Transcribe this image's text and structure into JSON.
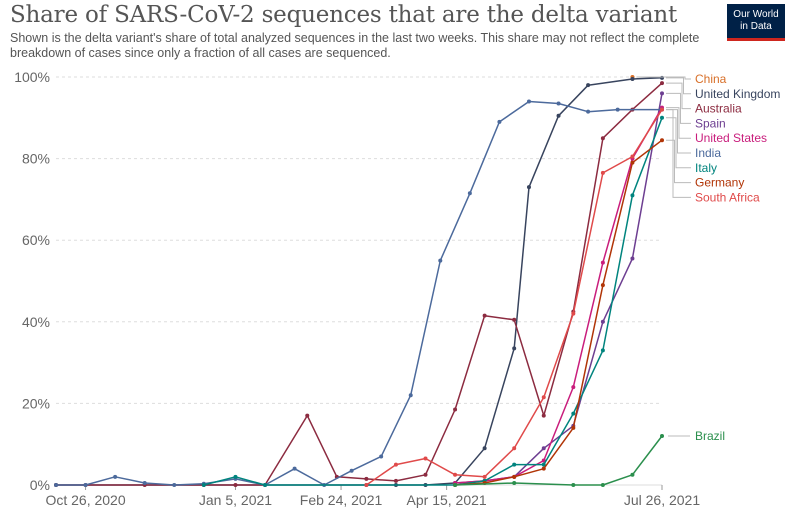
{
  "header": {
    "title": "Share of SARS-CoV-2 sequences that are the delta variant",
    "subtitle": "Shown is the delta variant's share of total analyzed sequences in the last two weeks. This share may not reflect the complete breakdown of cases since only a fraction of all cases are sequenced.",
    "logo_line1": "Our World",
    "logo_line2": "in Data"
  },
  "chart_data": {
    "type": "line",
    "title": "Share of SARS-CoV-2 sequences that are the delta variant",
    "xlabel": "",
    "ylabel": "",
    "ylim": [
      0,
      100
    ],
    "grid": true,
    "legend": "right",
    "y_ticks": [
      {
        "value": 0,
        "label": "0%"
      },
      {
        "value": 20,
        "label": "20%"
      },
      {
        "value": 40,
        "label": "40%"
      },
      {
        "value": 60,
        "label": "60%"
      },
      {
        "value": 80,
        "label": "80%"
      },
      {
        "value": 100,
        "label": "100%"
      }
    ],
    "x_ticks": [
      {
        "date": "2020-10-26",
        "label": "Oct 26, 2020"
      },
      {
        "date": "2021-01-05",
        "label": "Jan 5, 2021"
      },
      {
        "date": "2021-02-24",
        "label": "Feb 24, 2021"
      },
      {
        "date": "2021-04-15",
        "label": "Apr 15, 2021"
      },
      {
        "date": "2021-07-26",
        "label": "Jul 26, 2021"
      }
    ],
    "x_range": [
      "2020-10-12",
      "2021-07-26"
    ],
    "series": [
      {
        "name": "China",
        "color": "#d86f28",
        "points": [
          [
            "2021-07-12",
            100
          ]
        ]
      },
      {
        "name": "United Kingdom",
        "color": "#38445e",
        "points": [
          [
            "2020-10-12",
            0
          ],
          [
            "2021-03-08",
            0
          ],
          [
            "2021-03-22",
            0
          ],
          [
            "2021-04-05",
            0
          ],
          [
            "2021-04-19",
            0.5
          ],
          [
            "2021-05-03",
            9
          ],
          [
            "2021-05-17",
            33.5
          ],
          [
            "2021-05-24",
            73
          ],
          [
            "2021-06-07",
            90.5
          ],
          [
            "2021-06-21",
            98
          ],
          [
            "2021-07-12",
            99.5
          ],
          [
            "2021-07-26",
            99.8
          ]
        ]
      },
      {
        "name": "Australia",
        "color": "#8c2b40",
        "points": [
          [
            "2020-10-12",
            0
          ],
          [
            "2020-10-26",
            0
          ],
          [
            "2020-11-23",
            0
          ],
          [
            "2020-12-21",
            0
          ],
          [
            "2021-01-05",
            0
          ],
          [
            "2021-01-19",
            0
          ],
          [
            "2021-02-08",
            17
          ],
          [
            "2021-02-22",
            2
          ],
          [
            "2021-03-08",
            1.5
          ],
          [
            "2021-03-22",
            1
          ],
          [
            "2021-04-05",
            2.5
          ],
          [
            "2021-04-19",
            18.5
          ],
          [
            "2021-05-03",
            41.5
          ],
          [
            "2021-05-17",
            40.5
          ],
          [
            "2021-05-31",
            17
          ],
          [
            "2021-06-14",
            42.5
          ],
          [
            "2021-06-28",
            85
          ],
          [
            "2021-07-12",
            92
          ],
          [
            "2021-07-26",
            98.5
          ]
        ]
      },
      {
        "name": "Spain",
        "color": "#6d3e91",
        "points": [
          [
            "2021-04-19",
            0.5
          ],
          [
            "2021-05-03",
            1
          ],
          [
            "2021-05-17",
            2
          ],
          [
            "2021-05-31",
            9
          ],
          [
            "2021-06-14",
            14.5
          ],
          [
            "2021-06-28",
            40
          ],
          [
            "2021-07-12",
            55.5
          ],
          [
            "2021-07-26",
            96
          ]
        ]
      },
      {
        "name": "United States",
        "color": "#c91d7c",
        "points": [
          [
            "2021-04-19",
            0.5
          ],
          [
            "2021-05-03",
            1
          ],
          [
            "2021-05-17",
            2
          ],
          [
            "2021-05-31",
            6
          ],
          [
            "2021-06-14",
            24
          ],
          [
            "2021-06-28",
            54.5
          ],
          [
            "2021-07-12",
            80
          ],
          [
            "2021-07-26",
            92.5
          ]
        ]
      },
      {
        "name": "India",
        "color": "#4c6a9c",
        "points": [
          [
            "2020-10-12",
            0
          ],
          [
            "2020-10-26",
            0
          ],
          [
            "2020-11-09",
            2
          ],
          [
            "2020-11-23",
            0.5
          ],
          [
            "2020-12-07",
            0
          ],
          [
            "2020-12-21",
            0.3
          ],
          [
            "2021-01-05",
            1.5
          ],
          [
            "2021-01-19",
            0
          ],
          [
            "2021-02-02",
            4
          ],
          [
            "2021-02-16",
            0
          ],
          [
            "2021-03-01",
            3.5
          ],
          [
            "2021-03-15",
            7
          ],
          [
            "2021-03-29",
            22
          ],
          [
            "2021-04-12",
            55
          ],
          [
            "2021-04-26",
            71.5
          ],
          [
            "2021-05-10",
            89
          ],
          [
            "2021-05-24",
            94
          ],
          [
            "2021-06-07",
            93.5
          ],
          [
            "2021-06-21",
            91.5
          ],
          [
            "2021-07-05",
            92
          ],
          [
            "2021-07-26",
            92
          ]
        ]
      },
      {
        "name": "Italy",
        "color": "#00847e",
        "points": [
          [
            "2020-12-21",
            0
          ],
          [
            "2021-01-05",
            2
          ],
          [
            "2021-01-19",
            0
          ],
          [
            "2021-04-19",
            0
          ],
          [
            "2021-05-03",
            1
          ],
          [
            "2021-05-17",
            5
          ],
          [
            "2021-05-31",
            5
          ],
          [
            "2021-06-14",
            17.5
          ],
          [
            "2021-06-28",
            33
          ],
          [
            "2021-07-12",
            71
          ],
          [
            "2021-07-26",
            90
          ]
        ]
      },
      {
        "name": "Germany",
        "color": "#b13507",
        "points": [
          [
            "2021-04-19",
            0
          ],
          [
            "2021-05-03",
            0.5
          ],
          [
            "2021-05-17",
            2
          ],
          [
            "2021-05-31",
            4
          ],
          [
            "2021-06-14",
            14
          ],
          [
            "2021-06-28",
            49
          ],
          [
            "2021-07-12",
            79
          ],
          [
            "2021-07-26",
            84.5
          ]
        ]
      },
      {
        "name": "South Africa",
        "color": "#e04a4a",
        "points": [
          [
            "2021-03-08",
            0
          ],
          [
            "2021-03-22",
            5
          ],
          [
            "2021-04-05",
            6.5
          ],
          [
            "2021-04-19",
            2.5
          ],
          [
            "2021-05-03",
            2
          ],
          [
            "2021-05-17",
            9
          ],
          [
            "2021-05-31",
            21.5
          ],
          [
            "2021-06-14",
            42
          ],
          [
            "2021-06-28",
            76.5
          ],
          [
            "2021-07-12",
            80.5
          ],
          [
            "2021-07-26",
            92
          ]
        ]
      },
      {
        "name": "Brazil",
        "color": "#2b8f4d",
        "points": [
          [
            "2021-04-19",
            0
          ],
          [
            "2021-05-17",
            0.5
          ],
          [
            "2021-06-14",
            0
          ],
          [
            "2021-06-28",
            0
          ],
          [
            "2021-07-12",
            2.5
          ],
          [
            "2021-07-26",
            12
          ]
        ]
      }
    ]
  }
}
